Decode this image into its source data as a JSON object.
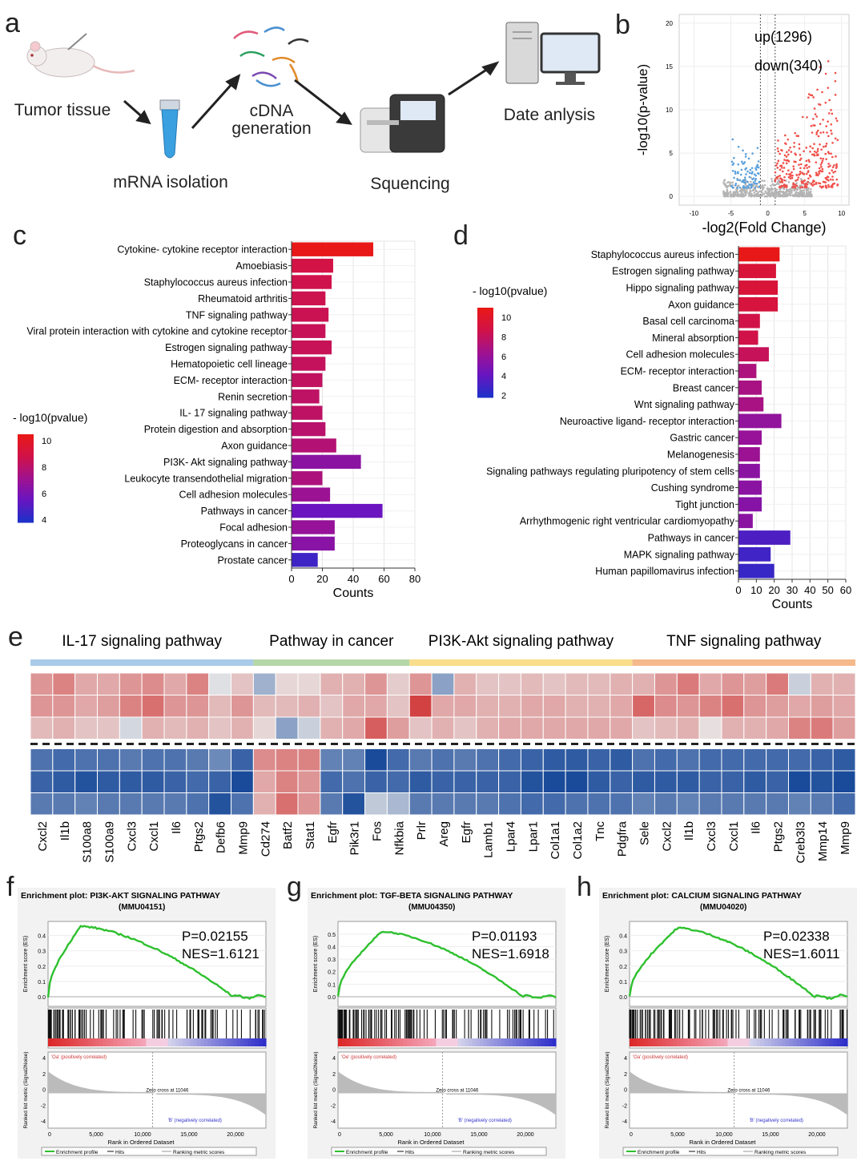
{
  "panel_labels": {
    "a": "a",
    "b": "b",
    "c": "c",
    "d": "d",
    "e": "e",
    "f": "f",
    "g": "g",
    "h": "h"
  },
  "workflow": {
    "steps": [
      "Tumor tissue",
      "mRNA isolation",
      "cDNA generation",
      "Squencing",
      "Date anlysis"
    ],
    "colors": {
      "tube": "#3aa0e0",
      "screen": "#dfe9f5"
    }
  },
  "chart_data": [
    {
      "id": "b",
      "type": "scatter",
      "title": "",
      "xlabel": "-log2(Fold Change)",
      "ylabel": "-log10(p-value)",
      "xlim": [
        -12,
        11
      ],
      "ylim": [
        -1,
        21
      ],
      "xticks": [
        -10,
        -5,
        0,
        5,
        10
      ],
      "yticks": [
        0,
        5,
        10,
        15,
        20
      ],
      "thresholds": {
        "x": [
          -1,
          1
        ]
      },
      "annotations": [
        "up(1296)",
        "down(340)"
      ],
      "series": [
        {
          "name": "up",
          "count": 1296,
          "color": "#f0504a"
        },
        {
          "name": "down",
          "count": 340,
          "color": "#5aa0dc"
        },
        {
          "name": "ns",
          "color": "#b4b4b4"
        }
      ]
    },
    {
      "id": "c",
      "type": "bar",
      "orientation": "horizontal",
      "xlabel": "Counts",
      "xlim": [
        0,
        80
      ],
      "xticks": [
        0,
        20,
        40,
        60,
        80
      ],
      "legend_title": "- log10(pvalue)",
      "legend_ticks": [
        10,
        8,
        6,
        4
      ],
      "color_range": [
        3.8,
        10.5
      ],
      "categories": [
        "Cytokine- cytokine receptor interaction",
        "Amoebiasis",
        "Staphylococcus aureus infection",
        "Rheumatoid arthritis",
        "TNF signaling pathway",
        "Viral protein interaction with cytokine and cytokine receptor",
        "Estrogen signaling pathway",
        "Hematopoietic cell lineage",
        "ECM- receptor interaction",
        "Renin secretion",
        "IL- 17 signaling pathway",
        "Protein digestion and absorption",
        "Axon guidance",
        "PI3K- Akt signaling pathway",
        "Leukocyte transendothelial migration",
        "Cell adhesion molecules",
        "Pathways in cancer",
        "Focal adhesion",
        "Proteoglycans in cancer",
        "Prostate cancer"
      ],
      "values": [
        53,
        27,
        26,
        22,
        24,
        22,
        26,
        22,
        20,
        18,
        20,
        22,
        29,
        45,
        20,
        25,
        59,
        28,
        28,
        17
      ],
      "pvalue": [
        10.5,
        9.0,
        8.8,
        8.7,
        8.6,
        8.5,
        8.5,
        8.4,
        8.3,
        8.2,
        8.2,
        8.0,
        7.8,
        6.5,
        7.6,
        7.0,
        5.5,
        6.8,
        6.4,
        4.5
      ]
    },
    {
      "id": "d",
      "type": "bar",
      "orientation": "horizontal",
      "xlabel": "Counts",
      "xlim": [
        0,
        60
      ],
      "xticks": [
        0,
        10,
        20,
        30,
        40,
        50,
        60
      ],
      "legend_title": "- log10(pvalue)",
      "legend_ticks": [
        10,
        8,
        6,
        4,
        2
      ],
      "color_range": [
        1.8,
        11
      ],
      "categories": [
        "Staphylococcus aureus infection",
        "Estrogen signaling pathway",
        "Hippo signaling pathway",
        "Axon guidance",
        "Basal cell carcinoma",
        "Mineral absorption",
        "Cell adhesion molecules",
        "ECM- receptor interaction",
        "Breast cancer",
        "Wnt signaling pathway",
        "Neuroactive ligand- receptor interaction",
        "Gastric cancer",
        "Melanogenesis",
        "Signaling pathways regulating pluripotency of stem cells",
        "Cushing syndrome",
        "Tight junction",
        "Arrhythmogenic right ventricular cardiomyopathy",
        "Pathways in cancer",
        "MAPK signaling pathway",
        "Human papillomavirus infection"
      ],
      "values": [
        23,
        21,
        22,
        22,
        12,
        11,
        17,
        10,
        13,
        14,
        24,
        13,
        12,
        12,
        13,
        13,
        8,
        29,
        18,
        20
      ],
      "pvalue": [
        11,
        9.5,
        9.5,
        9.3,
        8.8,
        8.8,
        8.2,
        7.0,
        6.8,
        6.8,
        5.8,
        6.0,
        6.2,
        5.5,
        5.5,
        5.3,
        5.5,
        3.2,
        2.8,
        2.5
      ]
    },
    {
      "id": "e",
      "type": "heatmap",
      "groups": [
        {
          "name": "IL-17 signaling pathway",
          "color": "#a9cbe9",
          "start": 0,
          "end": 10
        },
        {
          "name": "Pathway in cancer",
          "color": "#b5d7a8",
          "start": 10,
          "end": 17
        },
        {
          "name": "PI3K-Akt signaling pathway",
          "color": "#f8dd8a",
          "start": 17,
          "end": 27
        },
        {
          "name": "TNF signaling pathway",
          "color": "#f5b98c",
          "start": 27,
          "end": 37
        }
      ],
      "columns": [
        "Cxcl2",
        "Il1b",
        "S100a8",
        "S100a9",
        "Cxcl3",
        "Cxcl1",
        "Il6",
        "Ptgs2",
        "Defb6",
        "Mmp9",
        "Cd274",
        "Batf2",
        "Stat1",
        "Egfr",
        "Pik3r1",
        "Fos",
        "Nfkbia",
        "Prlr",
        "Areg",
        "Egfr",
        "Lamb1",
        "Lpar4",
        "Lpar1",
        "Col1a1",
        "Col1a2",
        "Tnc",
        "Pdgfra",
        "Sele",
        "Cxcl2",
        "Il1b",
        "Cxcl3",
        "Cxcl1",
        "Il6",
        "Ptgs2",
        "Creb3l3",
        "Mmp14",
        "Mmp9"
      ],
      "rows": [
        [
          0.45,
          0.55,
          0.35,
          0.35,
          0.45,
          0.5,
          0.35,
          0.55,
          -0.05,
          0.2,
          -0.35,
          0.1,
          0.1,
          0.3,
          0.3,
          0.45,
          0.15,
          0.45,
          -0.45,
          0.3,
          0.2,
          0.2,
          0.25,
          0.2,
          0.25,
          0.25,
          0.3,
          0.3,
          0.45,
          0.6,
          0.35,
          0.45,
          0.4,
          0.6,
          -0.15,
          0.3,
          0.3
        ],
        [
          0.45,
          0.45,
          0.35,
          0.4,
          0.55,
          0.65,
          0.45,
          0.45,
          0.25,
          0.45,
          0.25,
          0.25,
          0.3,
          0.2,
          0.35,
          0.35,
          0.2,
          0.9,
          0.35,
          0.35,
          0.3,
          0.3,
          0.35,
          0.35,
          0.3,
          0.3,
          0.35,
          0.7,
          0.5,
          0.45,
          0.55,
          0.65,
          0.45,
          0.4,
          0.35,
          0.4,
          0.35
        ],
        [
          0.25,
          0.3,
          0.2,
          0.2,
          -0.1,
          0.3,
          0.25,
          0.3,
          0.2,
          0.3,
          0.1,
          -0.45,
          -0.15,
          0.3,
          0.35,
          0.75,
          0.4,
          0.2,
          0.3,
          0.2,
          0.3,
          0.35,
          0.35,
          0.35,
          0.35,
          0.35,
          0.35,
          0.2,
          0.25,
          0.3,
          0.05,
          0.3,
          0.3,
          0.35,
          0.55,
          0.6,
          0.4
        ]
      ],
      "rows_lower": [
        [
          -0.75,
          -0.8,
          -0.75,
          -0.75,
          -0.7,
          -0.75,
          -0.75,
          -0.7,
          -0.6,
          -0.85,
          0.5,
          0.55,
          0.55,
          -0.65,
          -0.65,
          -1.0,
          -0.8,
          -0.7,
          -0.75,
          -0.7,
          -0.75,
          -0.8,
          -0.85,
          -0.9,
          -0.9,
          -0.85,
          -0.9,
          -0.75,
          -0.8,
          -0.75,
          -0.8,
          -0.8,
          -0.8,
          -0.8,
          -0.8,
          -0.85,
          -0.9
        ],
        [
          -0.85,
          -0.9,
          -0.95,
          -0.9,
          -0.9,
          -0.9,
          -0.85,
          -0.8,
          -0.85,
          -1.0,
          0.35,
          0.55,
          0.45,
          -0.8,
          -0.75,
          -0.85,
          -0.8,
          -0.9,
          -0.85,
          -0.85,
          -0.85,
          -0.85,
          -0.95,
          -1.0,
          -1.0,
          -0.9,
          -0.85,
          -0.9,
          -0.9,
          -0.9,
          -0.85,
          -0.85,
          -0.9,
          -0.85,
          -1.0,
          -0.95,
          -1.0
        ],
        [
          -0.7,
          -0.7,
          -0.65,
          -0.7,
          -0.7,
          -0.7,
          -0.7,
          -0.75,
          -0.95,
          -0.75,
          0.3,
          0.65,
          0.45,
          -0.7,
          -0.95,
          -0.2,
          -0.3,
          -0.7,
          -0.7,
          -0.7,
          -0.7,
          -0.75,
          -0.8,
          -0.8,
          -0.75,
          -0.75,
          -0.75,
          -0.65,
          -0.7,
          -0.65,
          -0.7,
          -0.7,
          -0.7,
          -0.7,
          -0.65,
          -0.7,
          -0.8
        ]
      ],
      "colors": {
        "up": "#d03030",
        "mid": "#e8e8e8",
        "down": "#1a4b9a"
      }
    },
    {
      "id": "f",
      "type": "line",
      "title": "Enrichment plot: PI3K-AKT SIGNALING PATHWAY",
      "subtitle": "(MMU04151)",
      "stats": [
        "P=0.02155",
        "NES=1.6121"
      ],
      "ylabel": "Enrichment score (ES)",
      "ylabel2": "Ranked list metric (Signal2Noise)",
      "xlabel": "Rank in Ordered Dataset",
      "yticks": [
        "0.0",
        "0.1",
        "0.2",
        "0.3",
        "0.4"
      ],
      "yticks2": [
        "4",
        "2",
        "0",
        "-2",
        "-4"
      ],
      "xticks": [
        "0",
        "5,000",
        "10,000",
        "15,000",
        "20,000"
      ],
      "peak": 0.46,
      "peak_frac": 0.15,
      "pos_label": "'Oa' (positively correlated)",
      "neg_label": "'B' (negatively correlated)",
      "zero_cross": "Zero cross at 11046",
      "legend": [
        "Enrichment profile",
        "Hits",
        "Ranking metric scores"
      ]
    },
    {
      "id": "g",
      "type": "line",
      "title": "Enrichment plot: TGF-BETA SIGNALING PATHWAY",
      "subtitle": "(MMU04350)",
      "stats": [
        "P=0.01193",
        "NES=1.6918"
      ],
      "ylabel": "Enrichment score (ES)",
      "ylabel2": "Ranked list metric (Signal2Noise)",
      "xlabel": "Rank in Ordered Dataset",
      "yticks": [
        "0.0",
        "0.1",
        "0.2",
        "0.3",
        "0.4",
        "0.5"
      ],
      "yticks2": [
        "4",
        "2",
        "0",
        "-2",
        "-4"
      ],
      "xticks": [
        "0",
        "5,000",
        "10,000",
        "15,000",
        "20,000"
      ],
      "peak": 0.52,
      "peak_frac": 0.2,
      "pos_label": "'Oe' (positively correlated)",
      "neg_label": "'B' (negatively correlated)",
      "zero_cross": "Zero cross at 11046",
      "legend": [
        "Enrichment profile",
        "Hits",
        "Ranking metric scores"
      ]
    },
    {
      "id": "h",
      "type": "line",
      "title": "Enrichment plot: CALCIUM SIGNALING PATHWAY",
      "subtitle": "(MMU04020)",
      "stats": [
        "P=0.02338",
        "NES=1.6011"
      ],
      "ylabel": "Enrichment score (ES)",
      "ylabel2": "Ranked list metric (Signal2Noise)",
      "xlabel": "Rank in Ordered Dataset",
      "yticks": [
        "0.0",
        "0.1",
        "0.2",
        "0.3",
        "0.4"
      ],
      "yticks2": [
        "4",
        "2",
        "0",
        "-2",
        "-4"
      ],
      "xticks": [
        "0",
        "5,000",
        "10,000",
        "15,000",
        "20,000"
      ],
      "peak": 0.45,
      "peak_frac": 0.22,
      "pos_label": "'Oa' (positively correlated)",
      "neg_label": "'B' (negatively correlated)",
      "zero_cross": "Zero cross at 11046",
      "legend": [
        "Enrichment profile",
        "Hits",
        "Ranking metric scores"
      ]
    }
  ]
}
